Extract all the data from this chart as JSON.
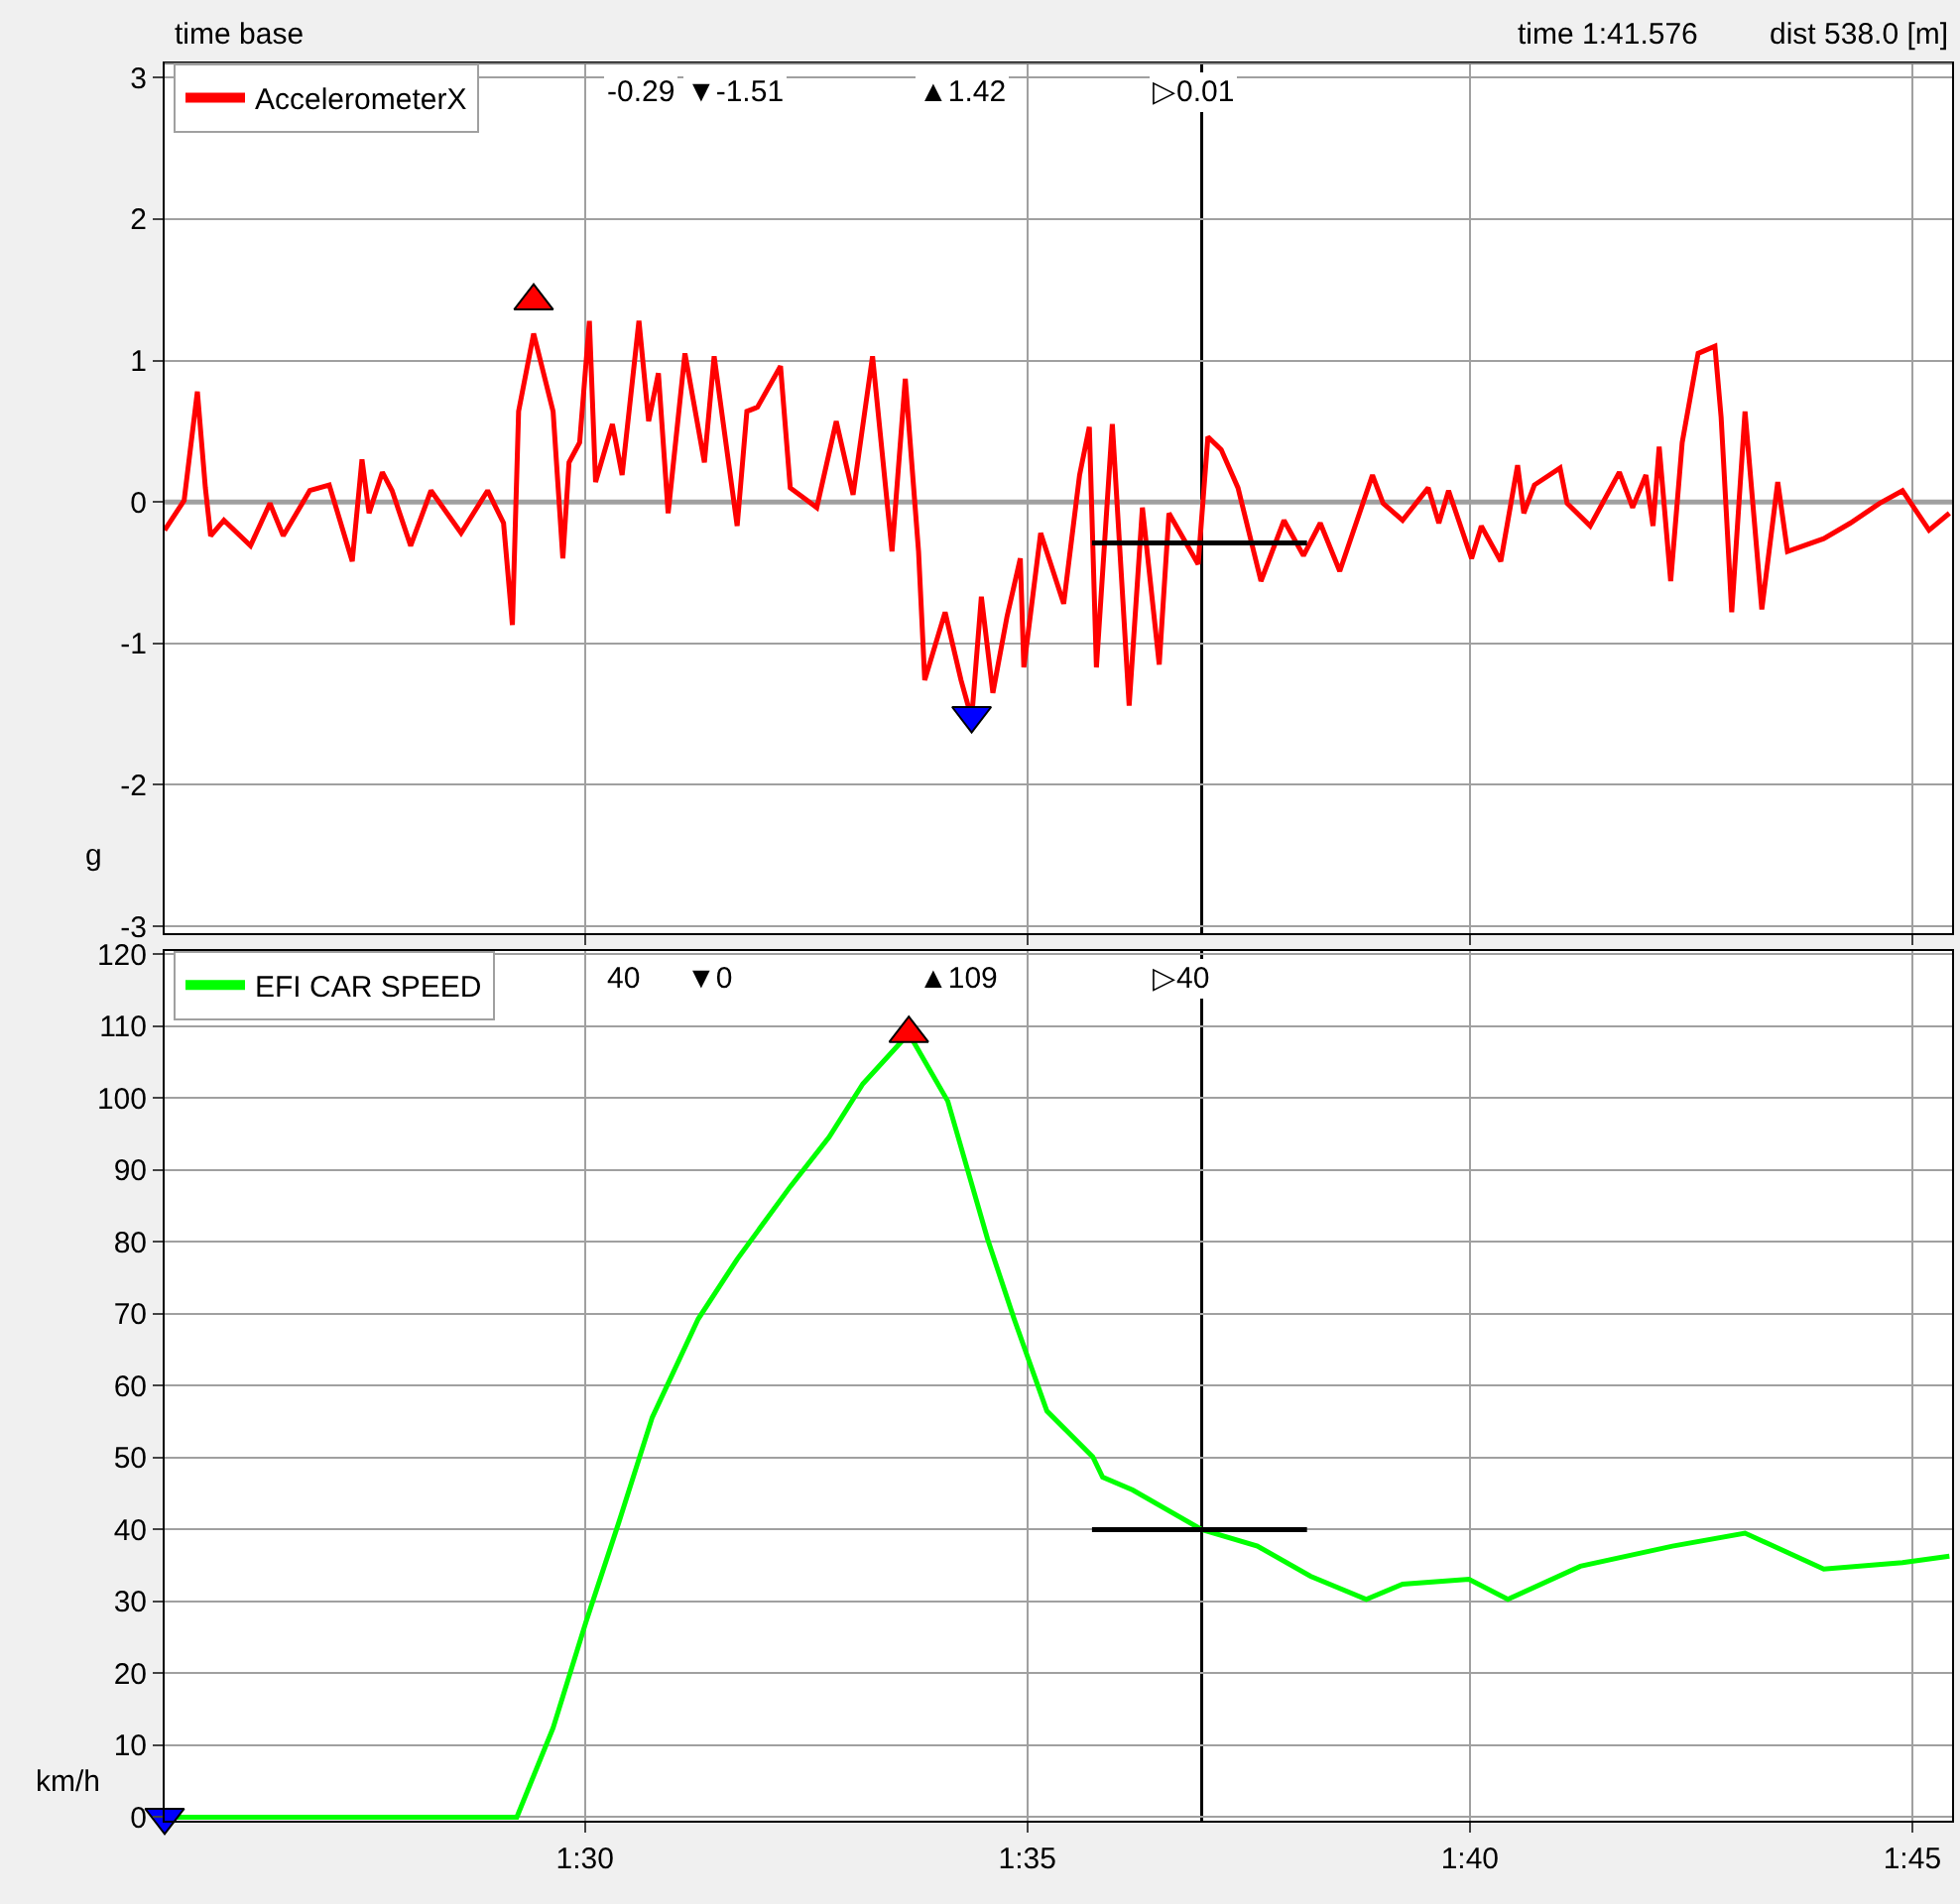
{
  "chart_data": [
    {
      "type": "other",
      "title": "time base",
      "annotations": [
        "time 1:41.576",
        "dist 538.0 [m]"
      ]
    },
    {
      "type": "line",
      "ylabel": "g",
      "grid": true,
      "legend": "top left",
      "tick_labels": "y",
      "xlim": [
        85.25,
        105.45
      ],
      "xticks": [
        {
          "value": 90,
          "label": null
        },
        {
          "value": 95,
          "label": null
        },
        {
          "value": 100,
          "label": null
        },
        {
          "value": 105,
          "label": null
        }
      ],
      "ylim": [
        -3.05,
        3.1
      ],
      "yticks": [
        -3,
        -2,
        -1,
        0,
        1,
        2,
        3
      ],
      "annotations": [
        "-0.29",
        "▼-1.51",
        "▲1.42",
        "▷0.01"
      ],
      "ref_lines": [
        {
          "axis": "x",
          "value": 96.97,
          "color": "#000000"
        },
        {
          "axis": "y",
          "value": 0,
          "color": "#a0a0a0"
        }
      ],
      "series": [
        {
          "name": "AccelerometerX",
          "color": "#ff0000",
          "x": [
            85.25,
            85.47,
            85.62,
            85.71,
            85.77,
            85.92,
            86.22,
            86.44,
            86.59,
            86.89,
            87.11,
            87.37,
            87.48,
            87.56,
            87.71,
            87.82,
            88.03,
            88.26,
            88.6,
            88.9,
            89.08,
            89.18,
            89.25,
            89.42,
            89.64,
            89.75,
            89.82,
            89.94,
            90.05,
            90.12,
            90.31,
            90.42,
            90.61,
            90.72,
            90.83,
            90.94,
            91.13,
            91.35,
            91.46,
            91.72,
            91.83,
            91.95,
            92.21,
            92.32,
            92.62,
            92.84,
            93.03,
            93.25,
            93.47,
            93.62,
            93.77,
            93.84,
            94.07,
            94.25,
            94.37,
            94.48,
            94.61,
            94.77,
            94.92,
            94.96,
            95.15,
            95.41,
            95.59,
            95.7,
            95.78,
            95.96,
            96.15,
            96.3,
            96.49,
            96.6,
            96.93,
            97.04,
            97.19,
            97.38,
            97.64,
            97.9,
            98.12,
            98.31,
            98.53,
            98.9,
            99.02,
            99.24,
            99.53,
            99.65,
            99.76,
            100.02,
            100.13,
            100.35,
            100.54,
            100.61,
            100.73,
            101.02,
            101.1,
            101.36,
            101.69,
            101.84,
            101.99,
            102.07,
            102.14,
            102.27,
            102.4,
            102.58,
            102.77,
            102.84,
            102.96,
            103.11,
            103.3,
            103.48,
            103.59,
            104.0,
            104.3,
            104.63,
            104.89,
            105.19,
            105.42
          ],
          "values": [
            -0.2,
            0.01,
            0.78,
            0.1,
            -0.24,
            -0.13,
            -0.31,
            -0.01,
            -0.24,
            0.08,
            0.12,
            -0.42,
            0.3,
            -0.08,
            0.21,
            0.08,
            -0.31,
            0.08,
            -0.22,
            0.08,
            -0.15,
            -0.87,
            0.64,
            1.19,
            0.64,
            -0.4,
            0.28,
            0.42,
            1.28,
            0.14,
            0.55,
            0.19,
            1.28,
            0.57,
            0.91,
            -0.08,
            1.05,
            0.28,
            1.03,
            -0.17,
            0.64,
            0.67,
            0.96,
            0.1,
            -0.04,
            0.57,
            0.05,
            1.03,
            -0.35,
            0.87,
            -0.35,
            -1.26,
            -0.78,
            -1.26,
            -1.53,
            -0.67,
            -1.35,
            -0.81,
            -0.4,
            -1.17,
            -0.22,
            -0.72,
            0.19,
            0.53,
            -1.17,
            0.55,
            -1.44,
            -0.04,
            -1.15,
            -0.08,
            -0.44,
            0.46,
            0.37,
            0.1,
            -0.56,
            -0.13,
            -0.38,
            -0.15,
            -0.49,
            0.19,
            -0.01,
            -0.13,
            0.1,
            -0.15,
            0.08,
            -0.4,
            -0.17,
            -0.42,
            0.26,
            -0.08,
            0.12,
            0.24,
            -0.01,
            -0.17,
            0.21,
            -0.04,
            0.19,
            -0.17,
            0.39,
            -0.56,
            0.42,
            1.05,
            1.1,
            0.6,
            -0.78,
            0.64,
            -0.76,
            0.14,
            -0.35,
            -0.26,
            -0.15,
            -0.01,
            0.08,
            -0.2,
            -0.08
          ]
        },
        {
          "type": "scatter",
          "marker": "triangle",
          "color": "#ff0000",
          "x": [
            89.42
          ],
          "values": [
            1.42
          ]
        },
        {
          "type": "scatter",
          "marker": "triangle-down",
          "color": "#0000ff",
          "x": [
            94.37
          ],
          "values": [
            -1.51
          ]
        },
        {
          "type": "line",
          "color": "#000000",
          "x": [
            95.73,
            98.16
          ],
          "values": [
            -0.29,
            -0.29
          ]
        }
      ]
    },
    {
      "type": "line",
      "ylabel": "km/h",
      "grid": true,
      "legend": "top left",
      "xlim": [
        85.25,
        105.45
      ],
      "xticks": [
        {
          "value": 90,
          "label": "1:30"
        },
        {
          "value": 95,
          "label": "1:35"
        },
        {
          "value": 100,
          "label": "1:40"
        },
        {
          "value": 105,
          "label": "1:45"
        }
      ],
      "ylim": [
        -0.5,
        120.5
      ],
      "yticks": [
        0,
        10,
        20,
        30,
        40,
        50,
        60,
        70,
        80,
        90,
        100,
        110,
        120
      ],
      "annotations": [
        "40",
        "▼0",
        "▲109",
        "▷40"
      ],
      "ref_lines": [
        {
          "axis": "x",
          "value": 96.97,
          "color": "#000000"
        }
      ],
      "series": [
        {
          "name": "EFI CAR SPEED",
          "color": "#00ff00",
          "x": [
            85.25,
            89.23,
            89.64,
            90.01,
            90.38,
            90.76,
            91.28,
            91.72,
            92.32,
            92.76,
            93.14,
            93.66,
            94.1,
            94.55,
            94.85,
            95.22,
            95.74,
            95.85,
            96.19,
            96.97,
            97.6,
            98.2,
            98.83,
            99.24,
            99.99,
            100.43,
            101.25,
            102.29,
            103.11,
            104.0,
            104.89,
            105.42
          ],
          "values": [
            0,
            0,
            12.4,
            27.1,
            40.9,
            55.6,
            69.3,
            77.6,
            87.7,
            94.6,
            102,
            109,
            99.6,
            80.4,
            69.3,
            56.5,
            50.1,
            47.3,
            45.5,
            40,
            37.7,
            33.5,
            30.3,
            32.4,
            33.1,
            30.3,
            34.9,
            37.7,
            39.5,
            34.5,
            35.4,
            36.3
          ]
        },
        {
          "type": "scatter",
          "marker": "triangle",
          "color": "#ff0000",
          "x": [
            93.66
          ],
          "values": [
            109
          ]
        },
        {
          "type": "scatter",
          "marker": "triangle-down",
          "color": "#0000ff",
          "x": [
            85.25
          ],
          "values": [
            0
          ]
        },
        {
          "type": "line",
          "color": "#000000",
          "x": [
            95.73,
            98.16
          ],
          "values": [
            40,
            40
          ]
        }
      ]
    }
  ]
}
